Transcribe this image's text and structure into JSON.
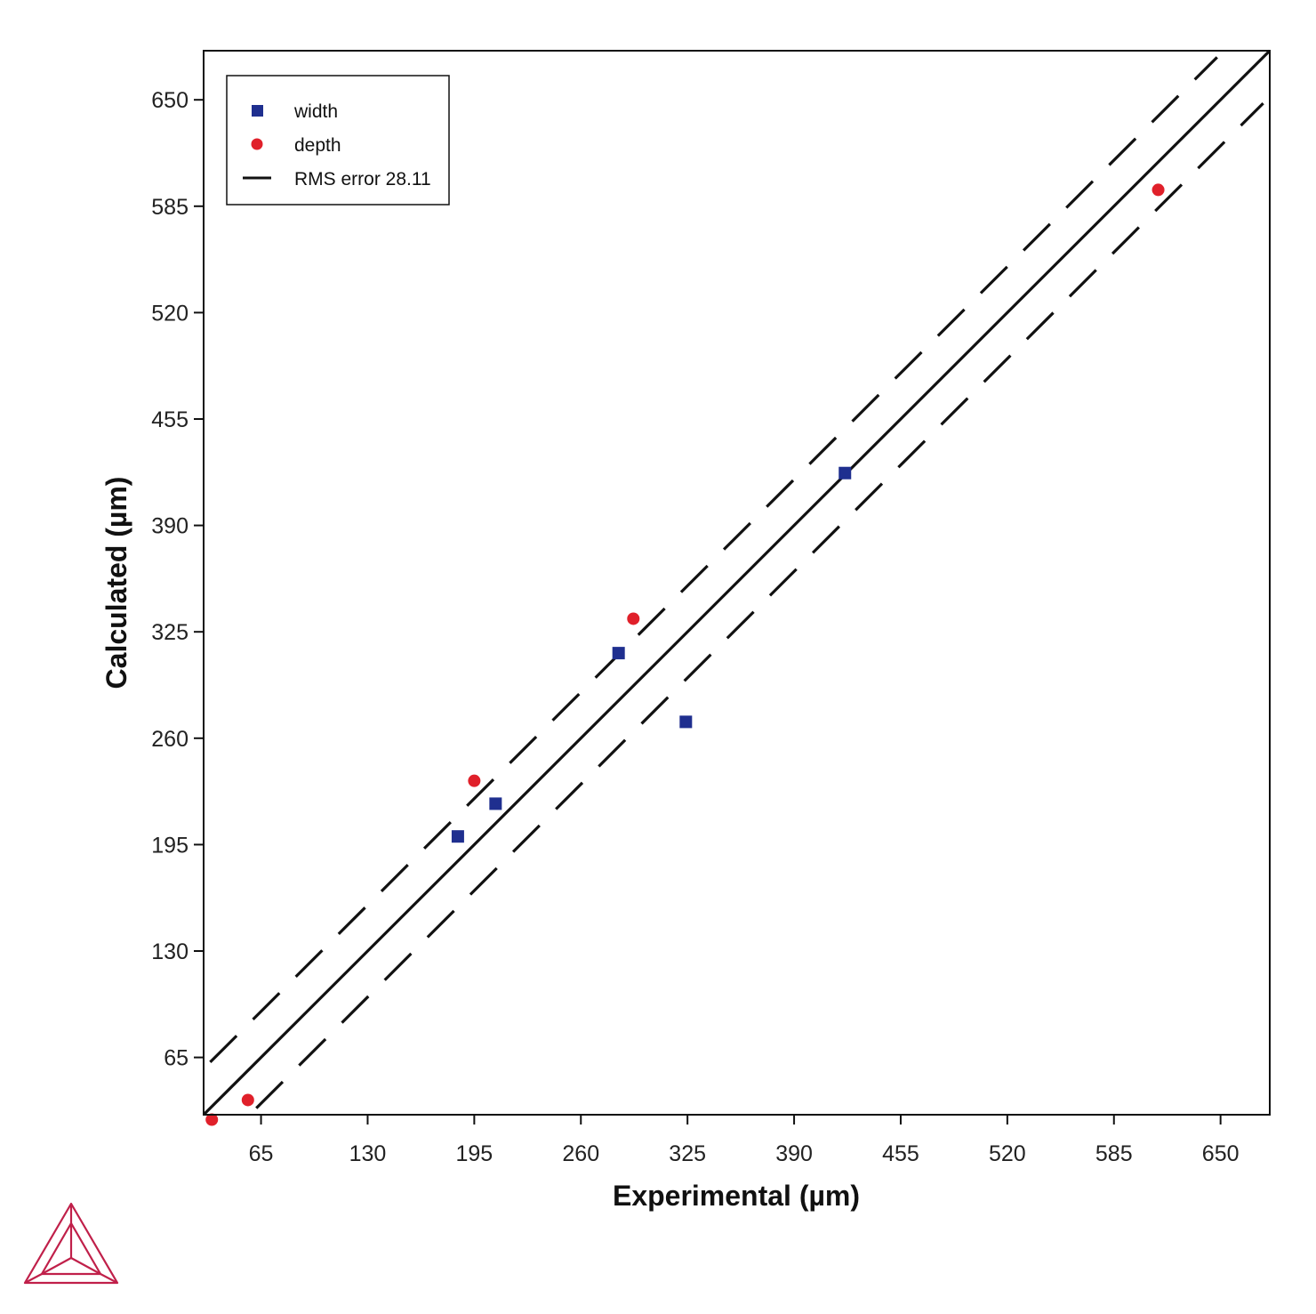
{
  "chart_data": {
    "type": "scatter",
    "xlabel": "Experimental (µm)",
    "ylabel": "Calculated (µm)",
    "xlim": [
      30,
      680
    ],
    "ylim": [
      30,
      680
    ],
    "x_ticks": [
      65,
      130,
      195,
      260,
      325,
      390,
      455,
      520,
      585,
      650
    ],
    "y_ticks": [
      65,
      130,
      195,
      260,
      325,
      390,
      455,
      520,
      585,
      650
    ],
    "grid": false,
    "legend_position": "top-left",
    "series": [
      {
        "name": "width",
        "marker": "square",
        "color": "#1f2f8f",
        "points": [
          {
            "x": 185,
            "y": 200
          },
          {
            "x": 208,
            "y": 220
          },
          {
            "x": 283,
            "y": 312
          },
          {
            "x": 324,
            "y": 270
          },
          {
            "x": 421,
            "y": 422
          }
        ]
      },
      {
        "name": "depth",
        "marker": "circle",
        "color": "#e0202a",
        "points": [
          {
            "x": 35,
            "y": 27
          },
          {
            "x": 57,
            "y": 39
          },
          {
            "x": 195,
            "y": 234
          },
          {
            "x": 292,
            "y": 333
          },
          {
            "x": 612,
            "y": 595
          }
        ]
      }
    ],
    "lines": [
      {
        "name": "RMS error 28.11",
        "kind": "identity",
        "style": "solid",
        "offset": 0
      },
      {
        "kind": "upper-bound",
        "style": "dashed",
        "offset": 28.11
      },
      {
        "kind": "lower-bound",
        "style": "dashed",
        "offset": -28.11
      }
    ]
  },
  "logo": {
    "color": "#c0204a"
  }
}
